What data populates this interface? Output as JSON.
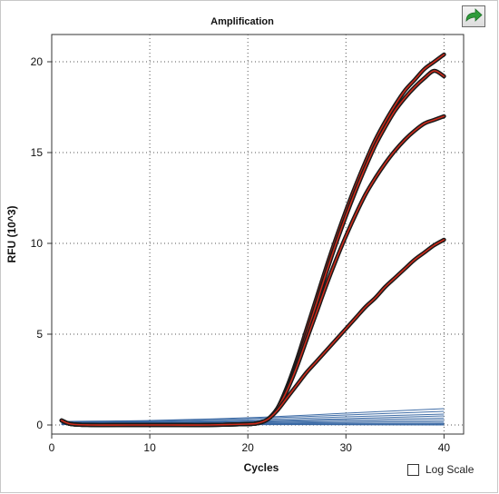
{
  "toolbar": {
    "export_icon": "export-arrow-icon",
    "export_icon_color": "#2e9b3a"
  },
  "options": {
    "log_scale_label": "Log Scale",
    "log_scale_checked": false
  },
  "chart_data": {
    "type": "line",
    "title": "Amplification",
    "xlabel": "Cycles",
    "ylabel": "RFU (10^3)",
    "xlim": [
      0,
      42
    ],
    "ylim": [
      -0.5,
      21.5
    ],
    "xticks": [
      0,
      10,
      20,
      30,
      40
    ],
    "yticks": [
      0,
      5,
      10,
      15,
      20
    ],
    "xtick_labels": [
      "0",
      "10",
      "20",
      "30",
      "40"
    ],
    "ytick_labels": [
      "0",
      "5",
      "10",
      "15",
      "20"
    ],
    "grid": true,
    "grid_style": "dotted",
    "highlight_color": "#cc2a1a",
    "highlight_outline_color": "#1a1a1a",
    "baseline_color": "#2e5f9e",
    "series": [
      {
        "highlight": true,
        "x": [
          1,
          2,
          4,
          8,
          12,
          16,
          20,
          21,
          22,
          23,
          24,
          25,
          26,
          27,
          28,
          29,
          30,
          31,
          32,
          33,
          34,
          35,
          36,
          37,
          38,
          39,
          40
        ],
        "y": [
          0.25,
          0.05,
          0.0,
          0.0,
          0.0,
          0.0,
          0.05,
          0.1,
          0.3,
          0.9,
          2.1,
          3.6,
          5.3,
          7.0,
          8.7,
          10.3,
          11.8,
          13.2,
          14.5,
          15.7,
          16.7,
          17.6,
          18.4,
          19.0,
          19.6,
          20.0,
          20.4
        ]
      },
      {
        "highlight": true,
        "x": [
          1,
          2,
          4,
          8,
          12,
          16,
          20,
          21,
          22,
          23,
          24,
          25,
          26,
          27,
          28,
          29,
          30,
          31,
          32,
          33,
          34,
          35,
          36,
          37,
          38,
          39,
          40
        ],
        "y": [
          0.25,
          0.05,
          0.0,
          0.0,
          0.0,
          0.0,
          0.05,
          0.1,
          0.3,
          0.9,
          2.0,
          3.4,
          5.0,
          6.7,
          8.4,
          10.0,
          11.5,
          12.9,
          14.2,
          15.4,
          16.4,
          17.3,
          18.0,
          18.6,
          19.1,
          19.5,
          19.2
        ]
      },
      {
        "highlight": true,
        "x": [
          1,
          2,
          4,
          8,
          12,
          16,
          20,
          21,
          22,
          23,
          24,
          25,
          26,
          27,
          28,
          29,
          30,
          31,
          32,
          33,
          34,
          35,
          36,
          37,
          38,
          39,
          40
        ],
        "y": [
          0.25,
          0.05,
          0.0,
          0.0,
          0.0,
          0.0,
          0.05,
          0.1,
          0.3,
          0.9,
          1.9,
          3.2,
          4.7,
          6.2,
          7.7,
          9.1,
          10.4,
          11.6,
          12.7,
          13.6,
          14.4,
          15.1,
          15.7,
          16.2,
          16.6,
          16.8,
          17.0
        ]
      },
      {
        "highlight": true,
        "x": [
          1,
          2,
          4,
          8,
          12,
          16,
          20,
          21,
          22,
          23,
          24,
          25,
          26,
          27,
          28,
          29,
          30,
          31,
          32,
          33,
          34,
          35,
          36,
          37,
          38,
          39,
          40
        ],
        "y": [
          0.25,
          0.05,
          0.0,
          0.0,
          0.0,
          0.0,
          0.05,
          0.1,
          0.3,
          0.8,
          1.5,
          2.2,
          2.9,
          3.5,
          4.1,
          4.7,
          5.3,
          5.9,
          6.5,
          7.0,
          7.6,
          8.1,
          8.6,
          9.1,
          9.5,
          9.9,
          10.2
        ]
      },
      {
        "highlight": false,
        "x": [
          1,
          10,
          20,
          30,
          40
        ],
        "y": [
          0.2,
          0.25,
          0.4,
          0.65,
          0.9
        ]
      },
      {
        "highlight": false,
        "x": [
          1,
          10,
          20,
          30,
          40
        ],
        "y": [
          0.18,
          0.22,
          0.35,
          0.55,
          0.75
        ]
      },
      {
        "highlight": false,
        "x": [
          1,
          10,
          20,
          30,
          40
        ],
        "y": [
          0.15,
          0.18,
          0.28,
          0.45,
          0.6
        ]
      },
      {
        "highlight": false,
        "x": [
          1,
          10,
          20,
          30,
          40
        ],
        "y": [
          0.12,
          0.15,
          0.22,
          0.35,
          0.5
        ]
      },
      {
        "highlight": false,
        "x": [
          1,
          10,
          20,
          30,
          40
        ],
        "y": [
          0.1,
          0.12,
          0.18,
          0.28,
          0.38
        ]
      },
      {
        "highlight": false,
        "x": [
          1,
          10,
          20,
          30,
          40
        ],
        "y": [
          0.08,
          0.1,
          0.14,
          0.2,
          0.28
        ]
      },
      {
        "highlight": false,
        "x": [
          1,
          10,
          20,
          30,
          40
        ],
        "y": [
          0.06,
          0.07,
          0.1,
          0.14,
          0.18
        ]
      },
      {
        "highlight": false,
        "x": [
          1,
          10,
          20,
          30,
          40
        ],
        "y": [
          0.05,
          0.05,
          0.07,
          0.08,
          0.1
        ]
      },
      {
        "highlight": false,
        "x": [
          1,
          10,
          20,
          30,
          40
        ],
        "y": [
          0.03,
          0.03,
          0.04,
          0.04,
          0.05
        ]
      },
      {
        "highlight": false,
        "x": [
          1,
          10,
          20,
          30,
          40
        ],
        "y": [
          0.02,
          0.02,
          0.02,
          0.01,
          0.0
        ]
      }
    ]
  }
}
